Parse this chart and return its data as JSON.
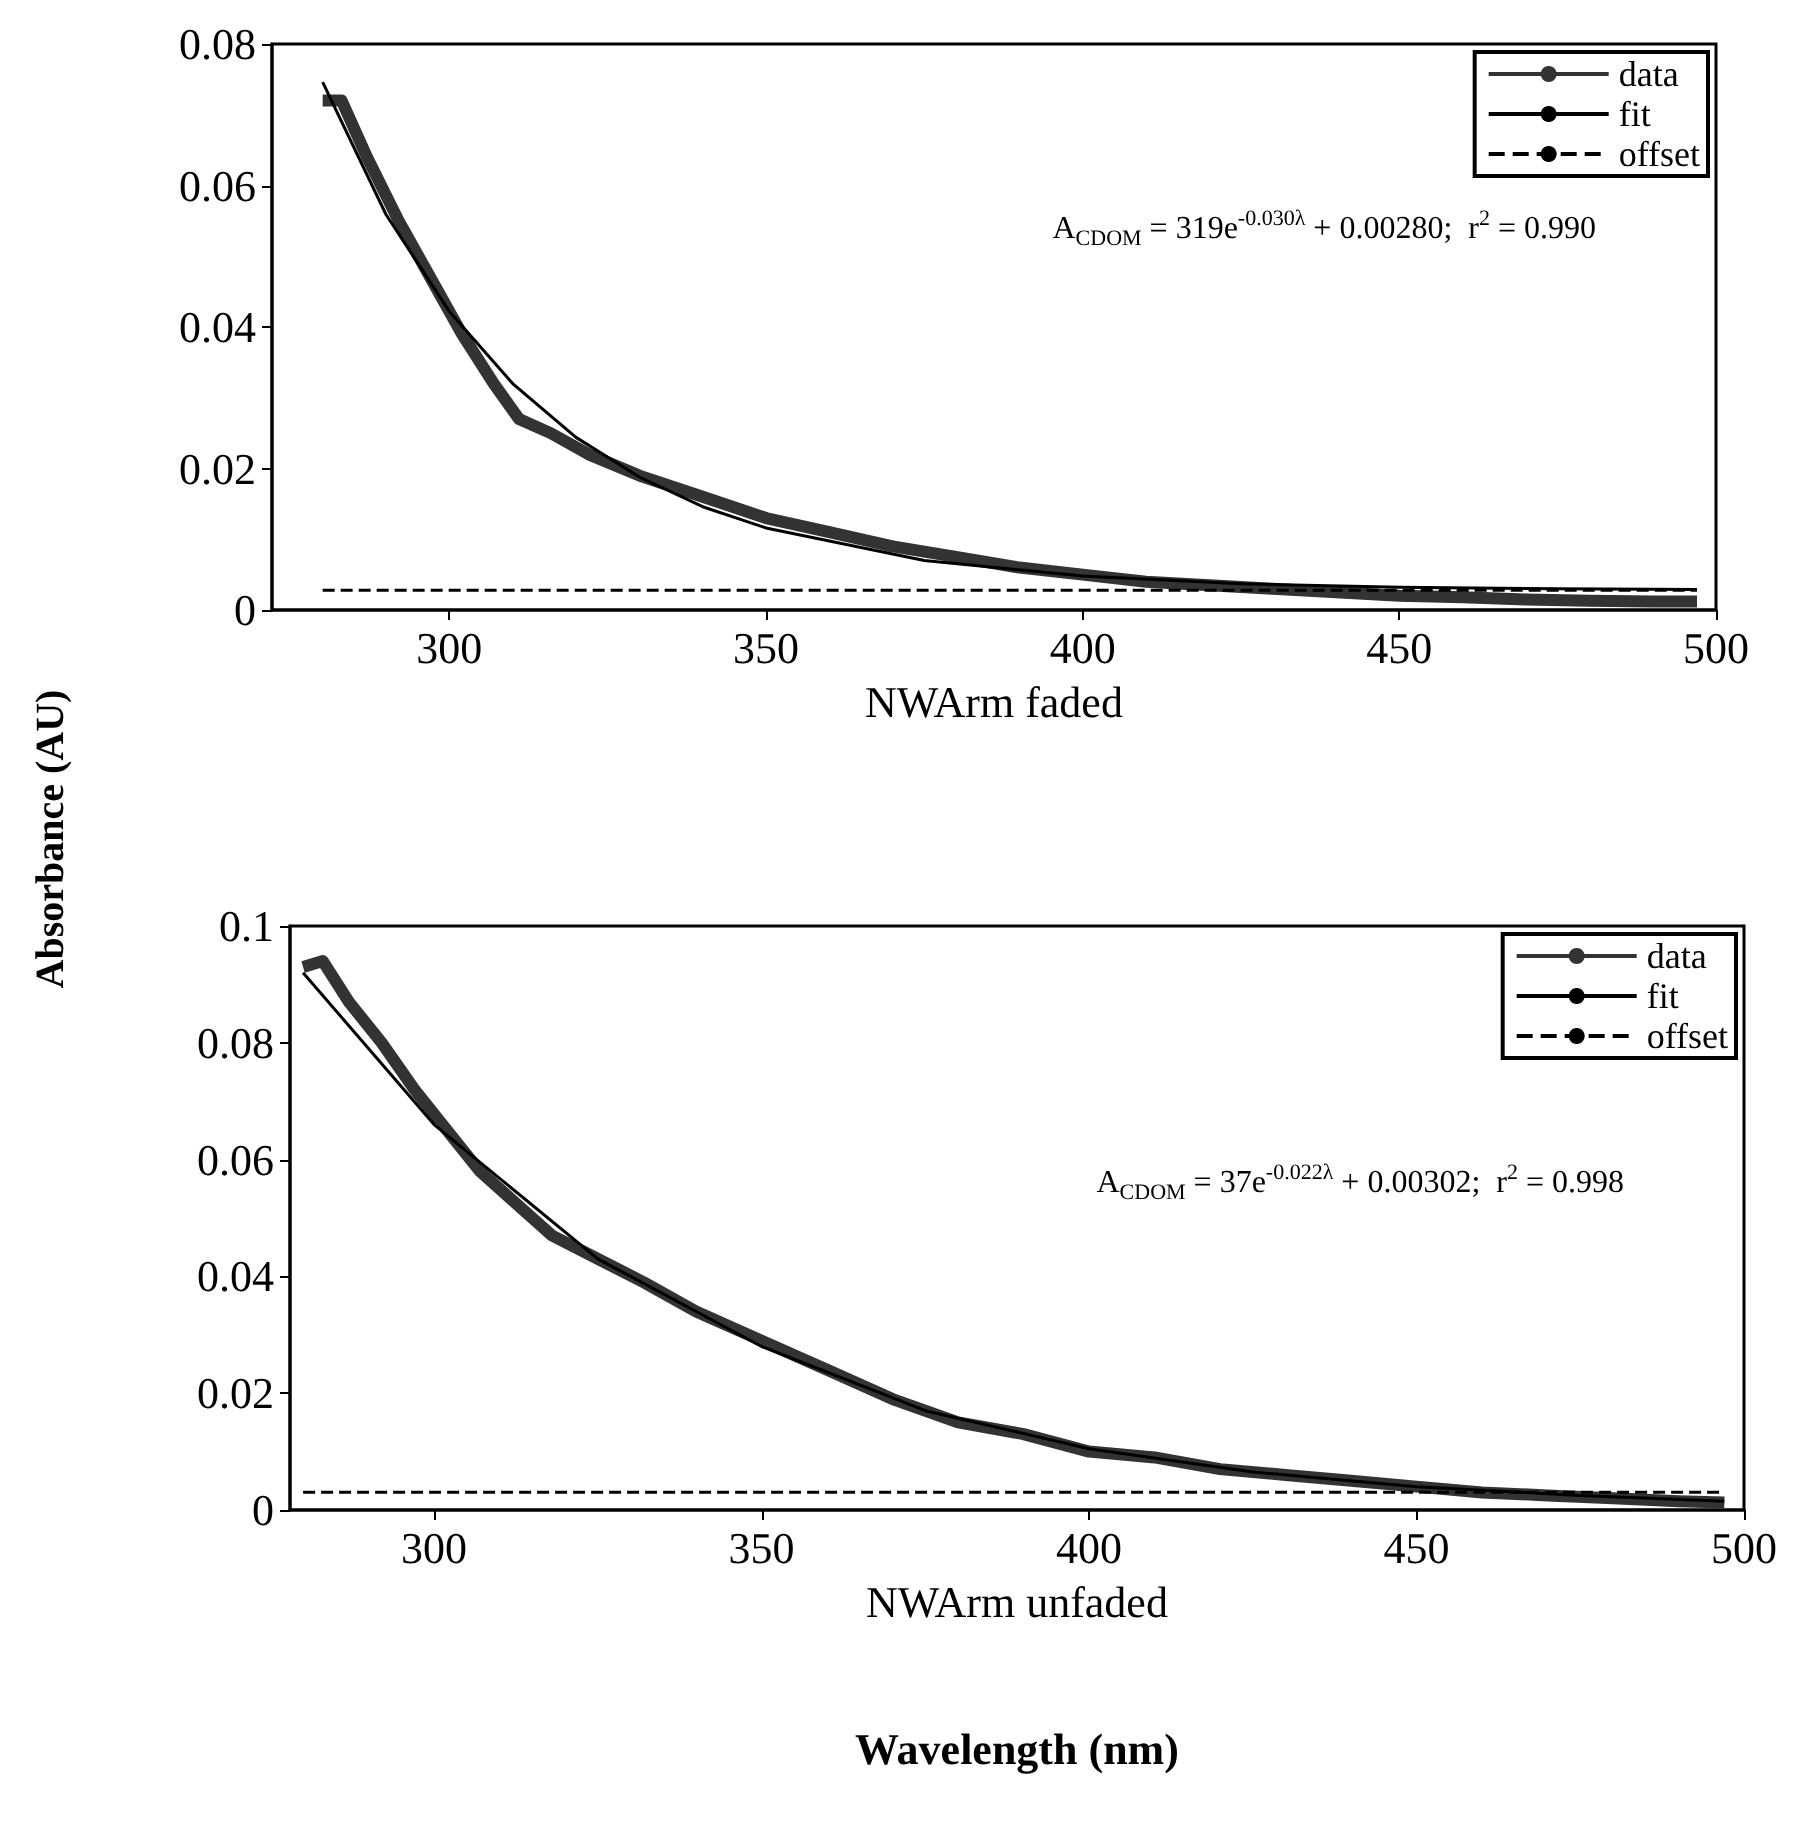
{
  "chart_data": [
    {
      "type": "line",
      "xlabel": "NWArm faded",
      "ylabel": "Absorbance (AU)",
      "xlim": [
        272,
        500
      ],
      "xticks": [
        300,
        350,
        400,
        450,
        500
      ],
      "ylim": [
        0,
        0.08
      ],
      "yticks": [
        0,
        0.02,
        0.04,
        0.06,
        0.08
      ],
      "legend": "top right",
      "marker": "none",
      "grid": false,
      "annotations": [
        "A$_{CDOM}$ = 319e$^{-0.030λ}$ + 0.00280;  r$^{2}$ = 0.990"
      ],
      "series": [
        {
          "name": "data",
          "color": "#333333",
          "x": [
            280,
            283,
            287,
            292,
            297,
            302,
            307,
            311,
            316,
            322,
            330,
            340,
            350,
            360,
            370,
            380,
            390,
            400,
            410,
            420,
            430,
            440,
            450,
            460,
            470,
            480,
            490,
            497
          ],
          "values": [
            0.072,
            0.072,
            0.064,
            0.055,
            0.047,
            0.039,
            0.032,
            0.027,
            0.025,
            0.022,
            0.019,
            0.016,
            0.013,
            0.011,
            0.009,
            0.0075,
            0.006,
            0.005,
            0.004,
            0.0035,
            0.003,
            0.0025,
            0.002,
            0.0018,
            0.0015,
            0.0013,
            0.0012,
            0.0012
          ]
        },
        {
          "name": "fit",
          "color": "#000000",
          "x": [
            280,
            290,
            300,
            310,
            320,
            330,
            340,
            350,
            375,
            400,
            425,
            450,
            475,
            497
          ],
          "values": [
            0.0746,
            0.0559,
            0.0422,
            0.032,
            0.0244,
            0.0188,
            0.0146,
            0.0116,
            0.007,
            0.0048,
            0.0037,
            0.0032,
            0.003,
            0.0029
          ]
        },
        {
          "name": "offset",
          "color": "#000000",
          "line_style": "dashed",
          "x": [
            280,
            497
          ],
          "values": [
            0.0028,
            0.0028
          ]
        }
      ]
    },
    {
      "type": "line",
      "xlabel": "NWArm unfaded",
      "xlim": [
        278,
        500
      ],
      "xticks": [
        300,
        350,
        400,
        450,
        500
      ],
      "ylim": [
        0,
        0.1
      ],
      "yticks": [
        0,
        0.02,
        0.04,
        0.06,
        0.08,
        0.1
      ],
      "legend": "top right",
      "marker": "none",
      "grid": false,
      "annotations": [
        "A$_{CDOM}$ = 37e$^{-0.022λ}$ + 0.00302;  r$^{2}$ = 0.998",
        "Wavelength (nm)"
      ],
      "series": [
        {
          "name": "data",
          "color": "#333333",
          "x": [
            280,
            283,
            287,
            292,
            297,
            302,
            307,
            312,
            318,
            325,
            332,
            340,
            350,
            360,
            370,
            380,
            390,
            400,
            410,
            420,
            430,
            440,
            450,
            460,
            470,
            480,
            490,
            497
          ],
          "values": [
            0.093,
            0.094,
            0.087,
            0.08,
            0.072,
            0.065,
            0.058,
            0.053,
            0.047,
            0.043,
            0.039,
            0.034,
            0.029,
            0.024,
            0.019,
            0.015,
            0.013,
            0.01,
            0.009,
            0.007,
            0.006,
            0.005,
            0.004,
            0.003,
            0.0025,
            0.002,
            0.0015,
            0.0013
          ]
        },
        {
          "name": "fit",
          "color": "#000000",
          "x": [
            280,
            300,
            325,
            350,
            375,
            400,
            425,
            450,
            475,
            497
          ],
          "values": [
            0.092,
            0.066,
            0.043,
            0.028,
            0.017,
            0.0105,
            0.0065,
            0.004,
            0.0025,
            0.0015
          ]
        },
        {
          "name": "offset",
          "color": "#000000",
          "line_style": "dashed",
          "x": [
            280,
            497
          ],
          "values": [
            0.00302,
            0.00302
          ]
        }
      ]
    }
  ]
}
